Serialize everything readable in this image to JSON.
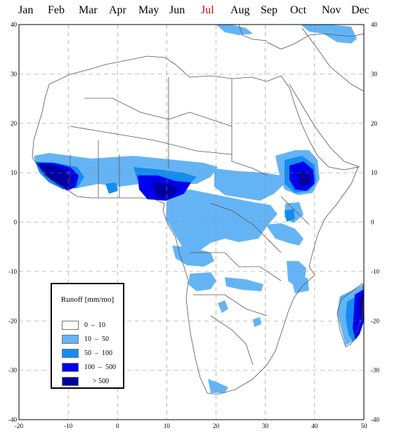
{
  "months": {
    "items": [
      "Jan",
      "Feb",
      "Mar",
      "Apr",
      "May",
      "Jun",
      "Jul",
      "Aug",
      "Sep",
      "Oct",
      "Nov",
      "Dec"
    ],
    "selected": "Jul",
    "selected_color": "#cc0000"
  },
  "map": {
    "lon_range": [
      -20,
      50
    ],
    "lat_range": [
      -40,
      40
    ],
    "x_ticks": [
      "-20",
      "-10",
      "0",
      "10",
      "20",
      "30",
      "40",
      "50"
    ],
    "y_ticks_left": [
      "40",
      "30",
      "20",
      "10",
      "0",
      "-10",
      "-20",
      "-30",
      "-40"
    ],
    "y_ticks_right": [
      "40",
      "30",
      "20",
      "10",
      "0",
      "-10",
      "-20",
      "-30",
      "-40"
    ],
    "gridlines": "dashed",
    "grid_color": "#8c8c8c"
  },
  "legend": {
    "title": "Runoff [mm/mo]",
    "items": [
      {
        "label": "0  –  10",
        "color": "#ffffff"
      },
      {
        "label": "10  –  50",
        "color": "#64b4f5"
      },
      {
        "label": "50  –  100",
        "color": "#148cf0"
      },
      {
        "label": "100  –  500",
        "color": "#0000f0"
      },
      {
        "label": "> 500",
        "color": "#0000a0"
      }
    ]
  },
  "runoff_regions": [
    {
      "name": "west-africa-coast",
      "class": 4
    },
    {
      "name": "west-africa-core",
      "class": 3
    },
    {
      "name": "gulf-of-guinea",
      "class": 3
    },
    {
      "name": "ethiopian-highlands",
      "class": 3
    },
    {
      "name": "east-madagascar",
      "class": 3
    },
    {
      "name": "sahel-belt",
      "class": 1
    },
    {
      "name": "congo-basin",
      "class": 1
    },
    {
      "name": "southern-africa",
      "class": 1
    },
    {
      "name": "east-africa",
      "class": 1
    }
  ]
}
